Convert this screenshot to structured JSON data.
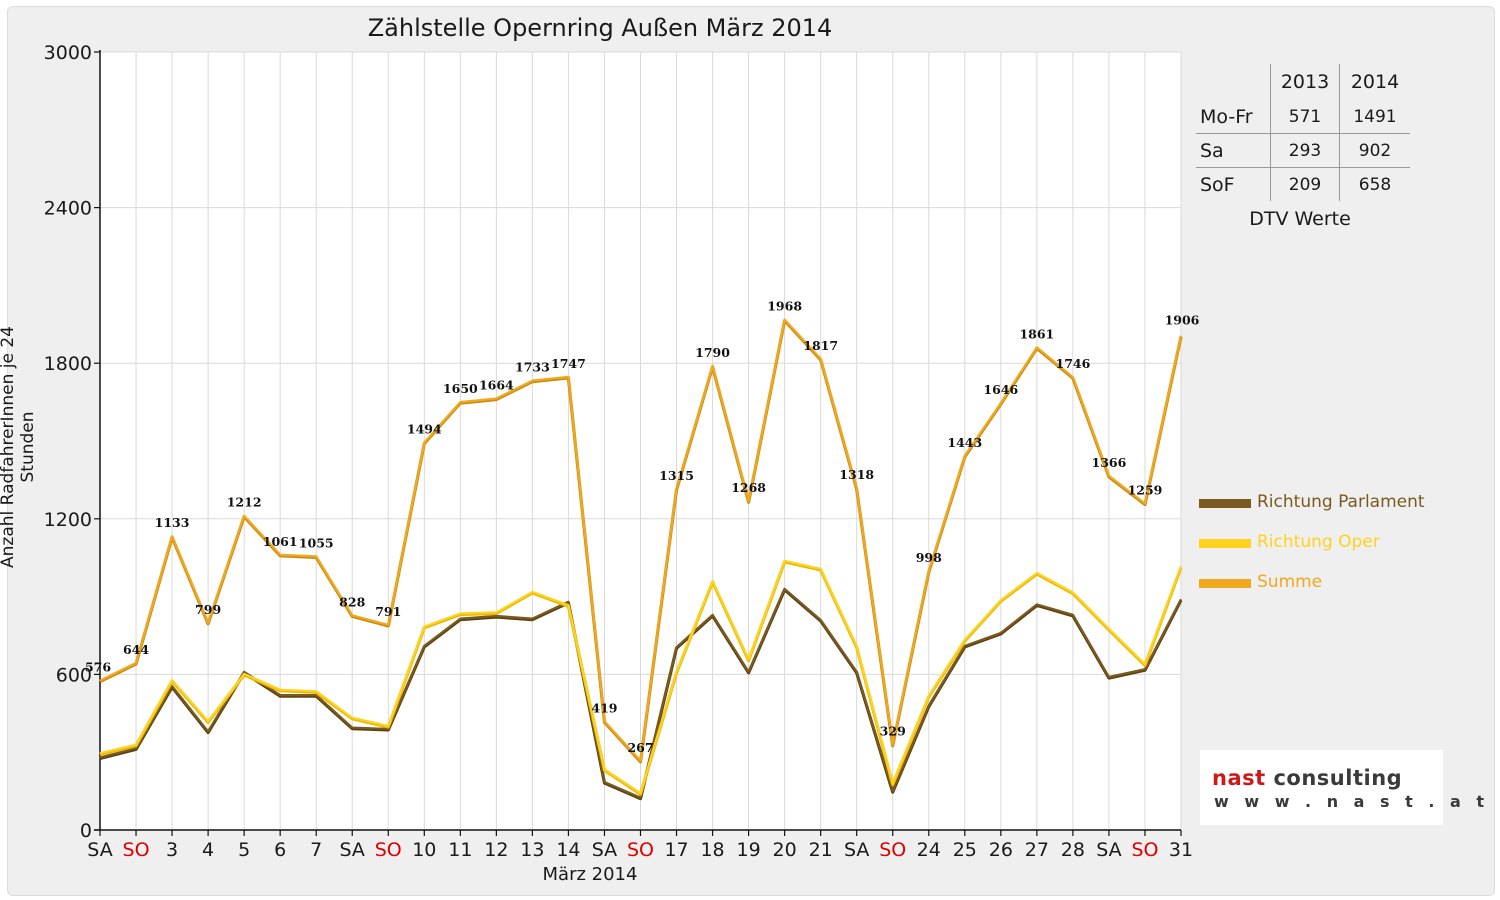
{
  "title": "Zählstelle Opernring Außen März 2014",
  "ylabel": "Anzahl RadfahrerInnen je 24 Stunden",
  "xlabel": "März 2014",
  "dtv_table": {
    "headers": [
      "2013",
      "2014"
    ],
    "rows": [
      {
        "label": "Mo-Fr",
        "v2013": "571",
        "v2014": "1491"
      },
      {
        "label": "Sa",
        "v2013": "293",
        "v2014": "902"
      },
      {
        "label": "SoF",
        "v2013": "209",
        "v2014": "658"
      }
    ],
    "caption": "DTV Werte"
  },
  "logo": {
    "part1": "nast",
    "part2": "consulting",
    "url": "w w w . n a s t . a t"
  },
  "colors": {
    "parlament": "#7a5a1e",
    "oper": "#ffd21f",
    "summe": "#f0a81e",
    "sunday_tick": "#dd0000"
  },
  "chart_data": {
    "type": "line",
    "categories": [
      "SA",
      "SO",
      "3",
      "4",
      "5",
      "6",
      "7",
      "SA",
      "SO",
      "10",
      "11",
      "12",
      "13",
      "14",
      "SA",
      "SO",
      "17",
      "18",
      "19",
      "20",
      "21",
      "SA",
      "SO",
      "24",
      "25",
      "26",
      "27",
      "28",
      "SA",
      "SO",
      "31"
    ],
    "sunday_categories": [
      1,
      8,
      15,
      22,
      29
    ],
    "ylim": [
      0,
      3000
    ],
    "yticks": [
      0,
      600,
      1200,
      1800,
      2400,
      3000
    ],
    "grid": true,
    "legend_position": "right",
    "series": [
      {
        "name": "Richtung Parlament",
        "color": "#7a5a1e",
        "values": [
          280,
          315,
          555,
          380,
          610,
          520,
          520,
          395,
          390,
          710,
          815,
          825,
          815,
          880,
          185,
          125,
          705,
          830,
          610,
          930,
          810,
          610,
          150,
          480,
          710,
          760,
          870,
          830,
          590,
          620,
          890
        ]
      },
      {
        "name": "Richtung Oper",
        "color": "#ffd21f",
        "values": [
          296,
          329,
          578,
          419,
          602,
          541,
          535,
          433,
          401,
          784,
          835,
          839,
          918,
          867,
          234,
          142,
          610,
          960,
          658,
          1038,
          1007,
          708,
          179,
          518,
          733,
          886,
          991,
          916,
          776,
          639,
          1016
        ]
      },
      {
        "name": "Summe",
        "color": "#f0a81e",
        "values": [
          576,
          644,
          1133,
          799,
          1212,
          1061,
          1055,
          828,
          791,
          1494,
          1650,
          1664,
          1733,
          1747,
          419,
          267,
          1315,
          1790,
          1268,
          1968,
          1817,
          1318,
          329,
          998,
          1443,
          1646,
          1861,
          1746,
          1366,
          1259,
          1906
        ],
        "labels": [
          "576",
          "644",
          "1133",
          "799",
          "1212",
          "1061",
          "1055",
          "828",
          "791",
          "1494",
          "1650",
          "1664",
          "1733",
          "1747",
          "419",
          "267",
          "1315",
          "1790",
          "1268",
          "1968",
          "1817",
          "1318",
          "329",
          "998",
          "1443",
          "1646",
          "1861",
          "1746",
          "1366",
          "1259",
          "1906"
        ]
      }
    ]
  }
}
